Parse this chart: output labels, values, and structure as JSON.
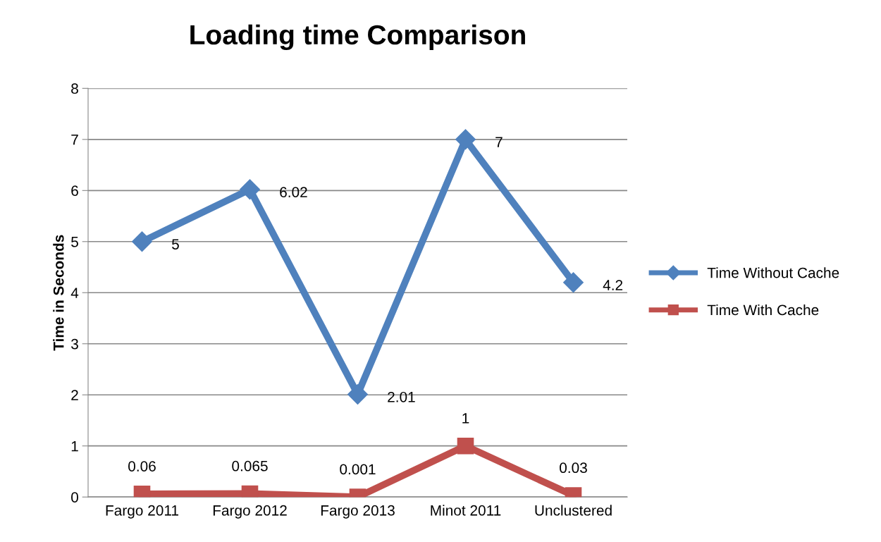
{
  "chart_data": {
    "type": "line",
    "title": "Loading time Comparison",
    "ylabel": "Time in Seconds",
    "categories": [
      "Fargo 2011",
      "Fargo 2012",
      "Fargo 2013",
      "Minot 2011",
      "Unclustered"
    ],
    "series": [
      {
        "name": "Time Without Cache",
        "color": "#4f81bd",
        "marker": "diamond",
        "values": [
          5,
          6.02,
          2.01,
          7,
          4.2
        ]
      },
      {
        "name": "Time With Cache",
        "color": "#c0504d",
        "marker": "square",
        "values": [
          0.06,
          0.065,
          0.001,
          1,
          0.03
        ]
      }
    ],
    "ylim": [
      0,
      8
    ],
    "yticks": [
      0,
      1,
      2,
      3,
      4,
      5,
      6,
      7,
      8
    ],
    "grid": "y",
    "legend": "right",
    "data_labels": true,
    "line_style": "solid"
  }
}
